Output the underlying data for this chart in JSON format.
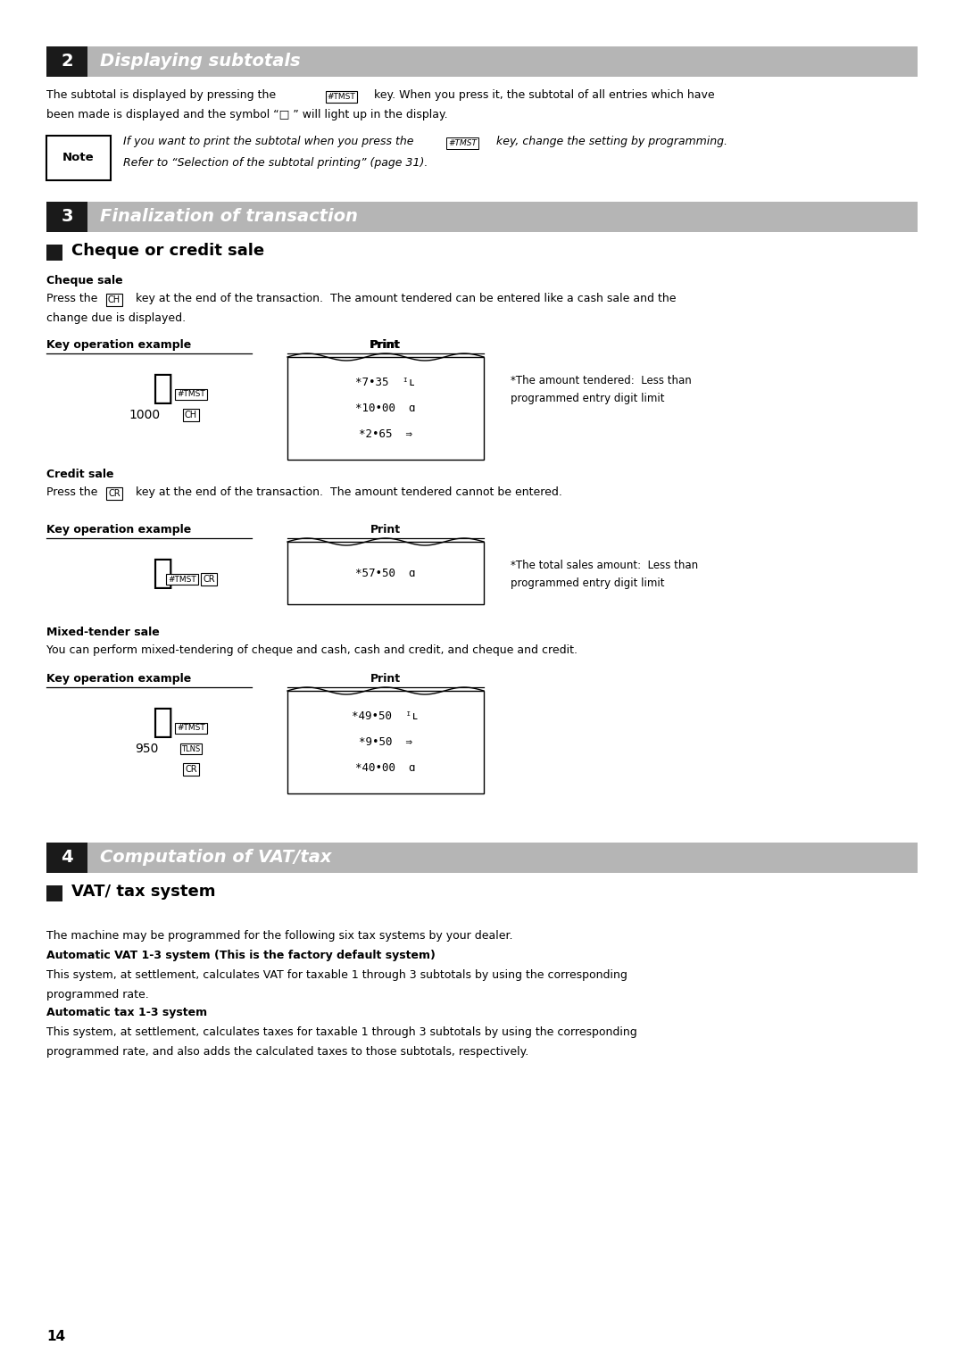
{
  "bg_color": "#ffffff",
  "lm": 0.048,
  "rm": 0.952,
  "header_gray": "#b5b5b5",
  "header_black": "#1a1a1a",
  "section2_title": "Displaying subtotals",
  "section3_title": "Finalization of transaction",
  "section4_title": "Computation of VAT/tax",
  "section2_num": "2",
  "section3_num": "3",
  "section4_num": "4",
  "sub2_title": "Cheque or credit sale",
  "sub4_title": "VAT/ tax system",
  "cheque_bold": "Cheque sale",
  "credit_bold": "Credit sale",
  "mixed_bold": "Mixed-tender sale",
  "mixed_para": "You can perform mixed-tendering of cheque and cash, cash and credit, and cheque and credit.",
  "key_op_label": "Key operation example",
  "print_label": "Print",
  "para4_1": "The machine may be programmed for the following six tax systems by your dealer.",
  "para4_bold1": "Automatic VAT 1-3 system (This is the factory default system)",
  "para4_2": "This system, at settlement, calculates VAT for taxable 1 through 3 subtotals by using the corresponding",
  "para4_3": "programmed rate.",
  "para4_bold2": "Automatic tax 1-3 system",
  "para4_4": "This system, at settlement, calculates taxes for taxable 1 through 3 subtotals by using the corresponding",
  "para4_5": "programmed rate, and also adds the calculated taxes to those subtotals, respectively.",
  "page_num": "14"
}
